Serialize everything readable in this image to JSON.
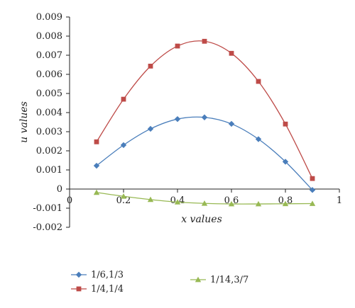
{
  "chart_data": {
    "type": "line",
    "xlabel": "x values",
    "ylabel": "u values",
    "xlim": [
      0,
      1
    ],
    "ylim": [
      -0.002,
      0.009
    ],
    "x_ticks": [
      0,
      0.2,
      0.4,
      0.6,
      0.8,
      1
    ],
    "x_tick_labels": [
      "0",
      "0.2",
      "0.4",
      "0.6",
      "0.8",
      "1"
    ],
    "y_ticks": [
      -0.002,
      -0.001,
      0,
      0.001,
      0.002,
      0.003,
      0.004,
      0.005,
      0.006,
      0.007,
      0.008,
      0.009
    ],
    "y_tick_labels": [
      "-0.002",
      "-0.001",
      "0",
      "0.001",
      "0.002",
      "0.003",
      "0.004",
      "0.005",
      "0.006",
      "0.007",
      "0.008",
      "0.009"
    ],
    "grid": false,
    "legend_position": "bottom",
    "series": [
      {
        "name": "1/6,1/3",
        "color": "#4a7ebb",
        "marker": "diamond",
        "x": [
          0.1,
          0.2,
          0.3,
          0.4,
          0.5,
          0.6,
          0.7,
          0.8,
          0.9
        ],
        "values": [
          0.00122,
          0.0023,
          0.00315,
          0.00366,
          0.00375,
          0.00341,
          0.00261,
          0.00143,
          -5e-05
        ]
      },
      {
        "name": "1/4,1/4",
        "color": "#be4b48",
        "marker": "square",
        "x": [
          0.1,
          0.2,
          0.3,
          0.4,
          0.5,
          0.6,
          0.7,
          0.8,
          0.9
        ],
        "values": [
          0.00247,
          0.0047,
          0.00643,
          0.00748,
          0.00773,
          0.0071,
          0.00563,
          0.0034,
          0.00055
        ]
      },
      {
        "name": "1/14,3/7",
        "color": "#98b954",
        "marker": "triangle",
        "x": [
          0.1,
          0.2,
          0.3,
          0.4,
          0.5,
          0.6,
          0.7,
          0.8,
          0.9
        ],
        "values": [
          -0.00018,
          -0.00038,
          -0.00055,
          -0.00068,
          -0.00075,
          -0.00078,
          -0.00078,
          -0.00077,
          -0.00076
        ]
      }
    ]
  }
}
